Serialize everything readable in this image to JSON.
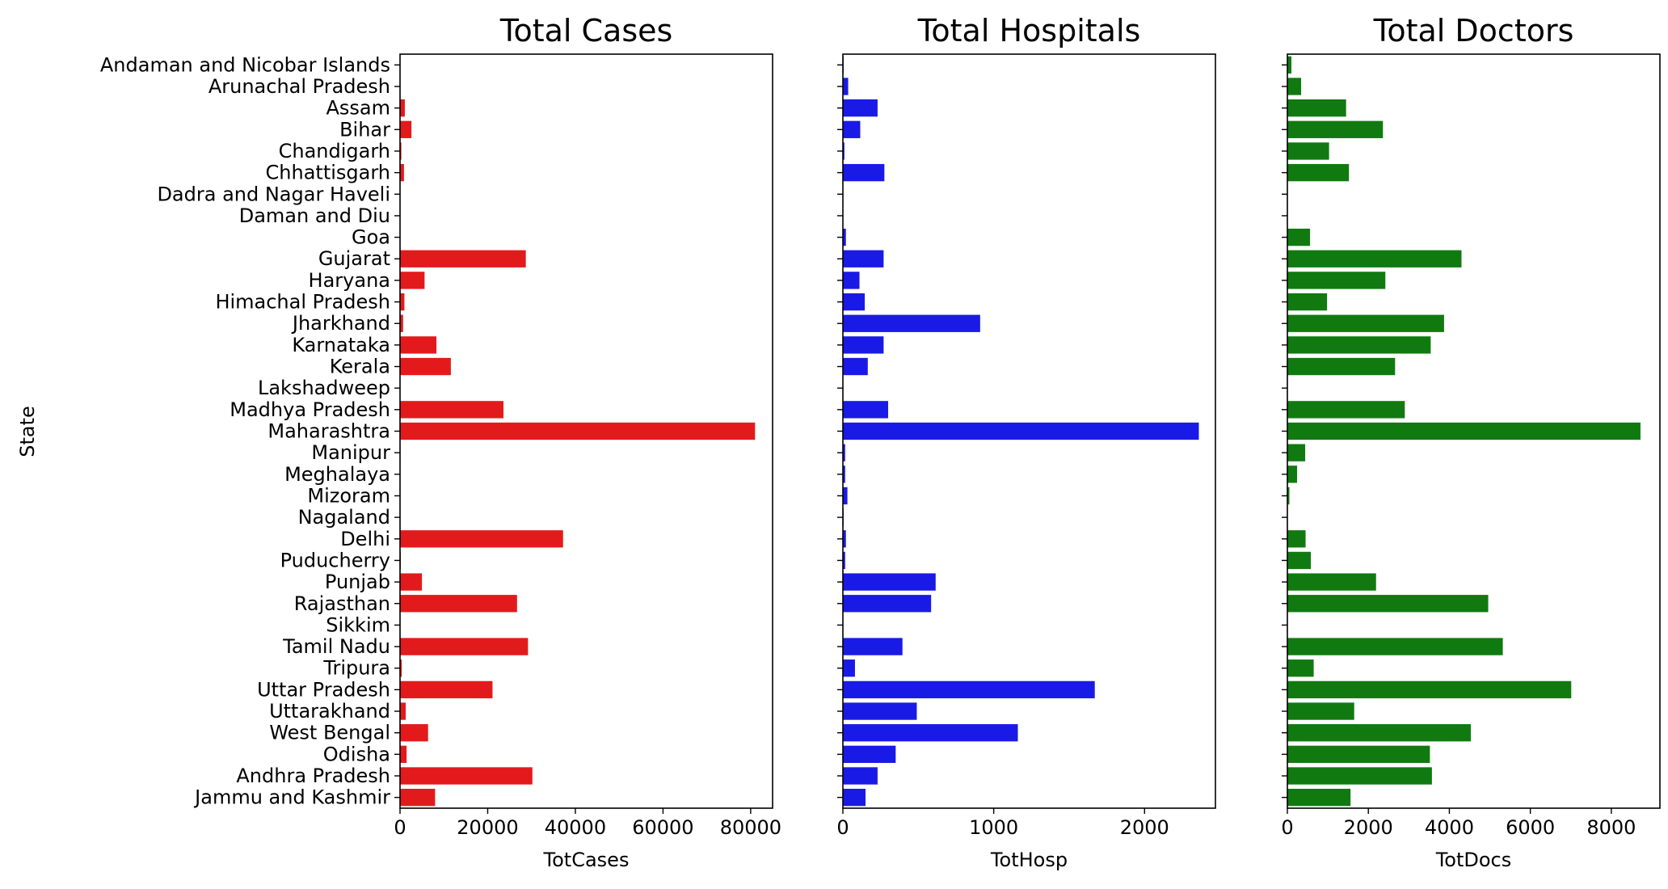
{
  "chart_data": {
    "type": "bar",
    "orientation": "horizontal",
    "ylabel": "State",
    "categories": [
      "Andaman and Nicobar Islands",
      "Arunachal Pradesh",
      "Assam",
      "Bihar",
      "Chandigarh",
      "Chhattisgarh",
      "Dadra and Nagar Haveli",
      "Daman and Diu",
      "Goa",
      "Gujarat",
      "Haryana",
      "Himachal Pradesh",
      "Jharkhand",
      "Karnataka",
      "Kerala",
      "Lakshadweep",
      "Madhya Pradesh",
      "Maharashtra",
      "Manipur",
      "Meghalaya",
      "Mizoram",
      "Nagaland",
      "Delhi",
      "Puducherry",
      "Punjab",
      "Rajasthan",
      "Sikkim",
      "Tamil Nadu",
      "Tripura",
      "Uttar Pradesh",
      "Uttarakhand",
      "West Bengal",
      "Odisha",
      "Andhra Pradesh",
      "Jammu and Kashmir"
    ],
    "panels": [
      {
        "title": "Total Cases",
        "xlabel": "TotCases",
        "color": "#e31a1c",
        "xlim": [
          0,
          85000
        ],
        "xticks": [
          0,
          20000,
          40000,
          60000,
          80000
        ],
        "xtick_labels": [
          "0",
          "20000",
          "40000",
          "60000",
          "80000"
        ],
        "values": [
          40,
          1,
          1100,
          2600,
          300,
          900,
          10,
          2,
          50,
          28700,
          5600,
          1000,
          700,
          8300,
          11600,
          0,
          23600,
          81000,
          100,
          40,
          30,
          10,
          37200,
          180,
          5000,
          26700,
          2,
          29200,
          400,
          21100,
          1300,
          6400,
          1500,
          30200,
          8000
        ]
      },
      {
        "title": "Total Hospitals",
        "xlabel": "TotHosp",
        "color": "#1a1ae6",
        "xlim": [
          0,
          2470
        ],
        "xticks": [
          0,
          1000,
          2000
        ],
        "xtick_labels": [
          "0",
          "1000",
          "2000"
        ],
        "values": [
          5,
          35,
          230,
          115,
          10,
          275,
          2,
          2,
          20,
          270,
          110,
          145,
          910,
          270,
          165,
          2,
          300,
          2360,
          15,
          15,
          30,
          5,
          20,
          15,
          615,
          585,
          2,
          395,
          80,
          1670,
          490,
          1160,
          350,
          230,
          150
        ]
      },
      {
        "title": "Total Doctors",
        "xlabel": "TotDocs",
        "color": "#107a10",
        "xlim": [
          0,
          9200
        ],
        "xticks": [
          0,
          2000,
          4000,
          6000,
          8000
        ],
        "xtick_labels": [
          "0",
          "2000",
          "4000",
          "6000",
          "8000"
        ],
        "values": [
          100,
          340,
          1450,
          2360,
          1030,
          1520,
          0,
          0,
          560,
          4300,
          2420,
          980,
          3870,
          3540,
          2660,
          10,
          2900,
          8720,
          440,
          240,
          50,
          10,
          450,
          580,
          2190,
          4960,
          10,
          5320,
          650,
          7010,
          1650,
          4530,
          3520,
          3570,
          1560
        ]
      }
    ]
  }
}
